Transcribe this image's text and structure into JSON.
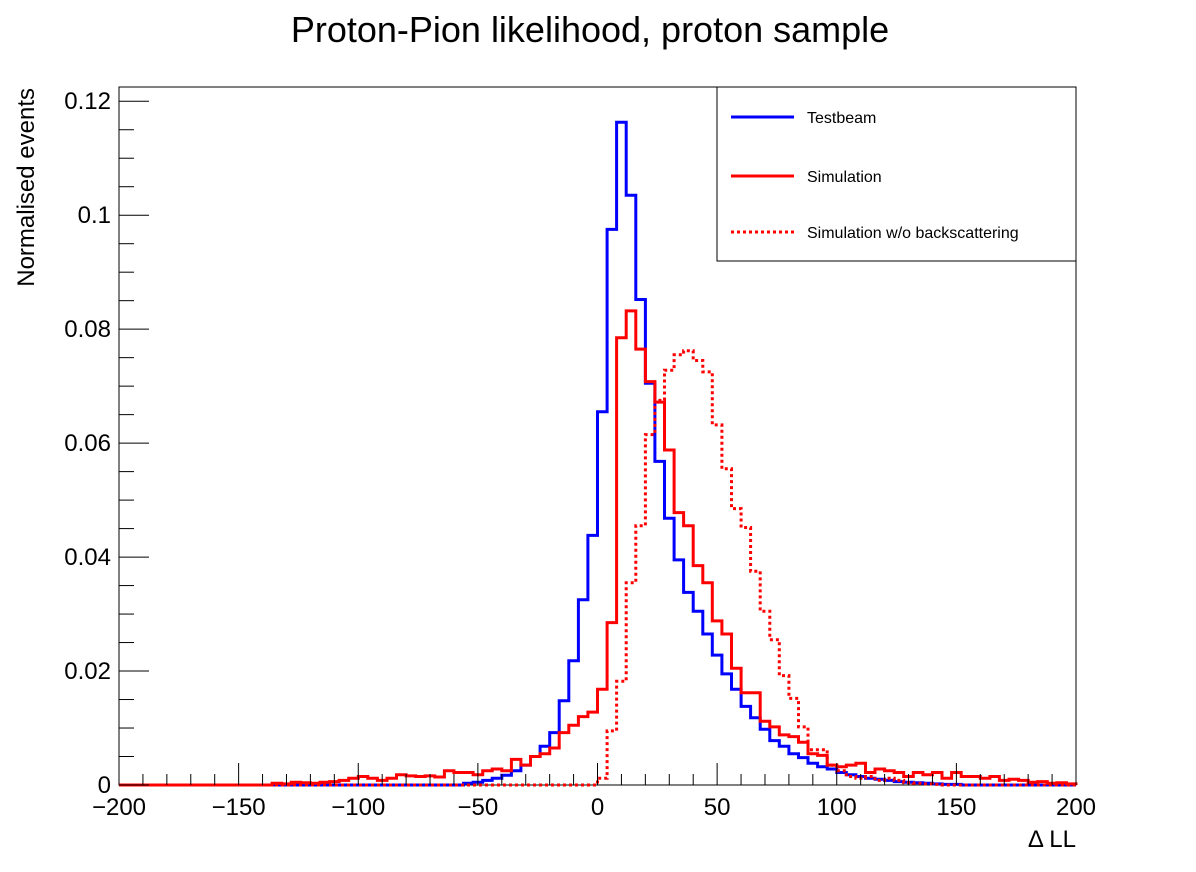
{
  "chart_data": {
    "type": "histogram",
    "title": "Proton-Pion likelihood, proton sample",
    "xlabel": "Δ LL",
    "ylabel": "Normalised events",
    "xlim": [
      -200,
      200
    ],
    "ylim": [
      0,
      0.1225
    ],
    "bin_width": 4,
    "x_ticks": [
      -200,
      -150,
      -100,
      -50,
      0,
      50,
      100,
      150,
      200
    ],
    "x_tick_labels": [
      "−200",
      "−150",
      "−100",
      "−50",
      "0",
      "50",
      "100",
      "150",
      "200"
    ],
    "y_ticks": [
      0,
      0.02,
      0.04,
      0.06,
      0.08,
      0.1,
      0.12
    ],
    "y_tick_labels": [
      "0",
      "0.02",
      "0.04",
      "0.06",
      "0.08",
      "0.1",
      "0.12"
    ],
    "grid": false,
    "legend_position": "top-right",
    "series": [
      {
        "name": "Testbeam",
        "color": "#0000ff",
        "style": "solid",
        "points": [
          [
            -200,
            0
          ],
          [
            -60,
            0
          ],
          [
            -56,
            0.0003
          ],
          [
            -52,
            0.0005
          ],
          [
            -48,
            0.0008
          ],
          [
            -44,
            0.0012
          ],
          [
            -40,
            0.0017
          ],
          [
            -36,
            0.0025
          ],
          [
            -32,
            0.0035
          ],
          [
            -28,
            0.005
          ],
          [
            -24,
            0.0068
          ],
          [
            -20,
            0.0092
          ],
          [
            -16,
            0.0148
          ],
          [
            -12,
            0.0218
          ],
          [
            -8,
            0.0325
          ],
          [
            -4,
            0.0438
          ],
          [
            0,
            0.0655
          ],
          [
            4,
            0.0975
          ],
          [
            8,
            0.1163
          ],
          [
            12,
            0.1035
          ],
          [
            16,
            0.0852
          ],
          [
            20,
            0.0705
          ],
          [
            24,
            0.0568
          ],
          [
            28,
            0.0468
          ],
          [
            32,
            0.0395
          ],
          [
            36,
            0.0338
          ],
          [
            40,
            0.0305
          ],
          [
            44,
            0.0265
          ],
          [
            48,
            0.0228
          ],
          [
            52,
            0.0195
          ],
          [
            56,
            0.0168
          ],
          [
            60,
            0.0138
          ],
          [
            64,
            0.0118
          ],
          [
            68,
            0.0098
          ],
          [
            72,
            0.0078
          ],
          [
            76,
            0.0068
          ],
          [
            80,
            0.0055
          ],
          [
            84,
            0.0048
          ],
          [
            88,
            0.0038
          ],
          [
            92,
            0.0032
          ],
          [
            96,
            0.0028
          ],
          [
            100,
            0.0022
          ],
          [
            104,
            0.0018
          ],
          [
            108,
            0.0015
          ],
          [
            112,
            0.0012
          ],
          [
            116,
            0.001
          ],
          [
            120,
            0.0008
          ],
          [
            124,
            0.0006
          ],
          [
            128,
            0.0005
          ],
          [
            132,
            0.0004
          ],
          [
            136,
            0.0003
          ],
          [
            140,
            0.0002
          ],
          [
            144,
            0.0001
          ],
          [
            148,
            0.0001
          ],
          [
            152,
            0
          ],
          [
            200,
            0
          ]
        ]
      },
      {
        "name": "Simulation",
        "color": "#ff0000",
        "style": "solid",
        "points": [
          [
            -200,
            0
          ],
          [
            -140,
            0
          ],
          [
            -136,
            0.0003
          ],
          [
            -132,
            0.0002
          ],
          [
            -128,
            0.0005
          ],
          [
            -124,
            0.0004
          ],
          [
            -120,
            0.0003
          ],
          [
            -116,
            0.0005
          ],
          [
            -112,
            0.0006
          ],
          [
            -108,
            0.0008
          ],
          [
            -104,
            0.0012
          ],
          [
            -100,
            0.0015
          ],
          [
            -96,
            0.0012
          ],
          [
            -92,
            0.0008
          ],
          [
            -88,
            0.0012
          ],
          [
            -84,
            0.0018
          ],
          [
            -80,
            0.0016
          ],
          [
            -76,
            0.0015
          ],
          [
            -72,
            0.0016
          ],
          [
            -68,
            0.0014
          ],
          [
            -64,
            0.0025
          ],
          [
            -60,
            0.0022
          ],
          [
            -56,
            0.0022
          ],
          [
            -52,
            0.0018
          ],
          [
            -48,
            0.0025
          ],
          [
            -44,
            0.0028
          ],
          [
            -40,
            0.0025
          ],
          [
            -36,
            0.0045
          ],
          [
            -32,
            0.0035
          ],
          [
            -28,
            0.005
          ],
          [
            -24,
            0.0055
          ],
          [
            -20,
            0.0065
          ],
          [
            -16,
            0.0092
          ],
          [
            -12,
            0.0105
          ],
          [
            -8,
            0.012
          ],
          [
            -4,
            0.0128
          ],
          [
            0,
            0.0168
          ],
          [
            4,
            0.0285
          ],
          [
            8,
            0.0785
          ],
          [
            12,
            0.0832
          ],
          [
            16,
            0.0765
          ],
          [
            20,
            0.0708
          ],
          [
            24,
            0.0672
          ],
          [
            28,
            0.0588
          ],
          [
            32,
            0.0478
          ],
          [
            36,
            0.0455
          ],
          [
            40,
            0.0385
          ],
          [
            44,
            0.0355
          ],
          [
            48,
            0.0288
          ],
          [
            52,
            0.0265
          ],
          [
            56,
            0.0205
          ],
          [
            60,
            0.0162
          ],
          [
            64,
            0.0162
          ],
          [
            68,
            0.0112
          ],
          [
            72,
            0.0102
          ],
          [
            76,
            0.0088
          ],
          [
            80,
            0.0085
          ],
          [
            84,
            0.0075
          ],
          [
            88,
            0.0055
          ],
          [
            92,
            0.0052
          ],
          [
            96,
            0.0035
          ],
          [
            100,
            0.0032
          ],
          [
            104,
            0.0035
          ],
          [
            108,
            0.0038
          ],
          [
            112,
            0.0022
          ],
          [
            116,
            0.0028
          ],
          [
            120,
            0.0025
          ],
          [
            124,
            0.0022
          ],
          [
            128,
            0.0015
          ],
          [
            132,
            0.0022
          ],
          [
            136,
            0.0018
          ],
          [
            140,
            0.0022
          ],
          [
            144,
            0.0012
          ],
          [
            148,
            0.0022
          ],
          [
            152,
            0.0015
          ],
          [
            156,
            0.0015
          ],
          [
            160,
            0.0012
          ],
          [
            164,
            0.0015
          ],
          [
            168,
            0.0008
          ],
          [
            172,
            0.001
          ],
          [
            176,
            0.0008
          ],
          [
            180,
            0.0005
          ],
          [
            184,
            0.0006
          ],
          [
            188,
            0.0003
          ],
          [
            192,
            0.0004
          ],
          [
            196,
            0.0002
          ],
          [
            200,
            0
          ]
        ]
      },
      {
        "name": "Simulation w/o backscattering",
        "color": "#ff0000",
        "style": "dotted",
        "points": [
          [
            -200,
            0
          ],
          [
            -4,
            0
          ],
          [
            0,
            0.0012
          ],
          [
            4,
            0.0095
          ],
          [
            8,
            0.0182
          ],
          [
            12,
            0.0355
          ],
          [
            16,
            0.0455
          ],
          [
            20,
            0.0615
          ],
          [
            24,
            0.0675
          ],
          [
            28,
            0.0728
          ],
          [
            32,
            0.0755
          ],
          [
            36,
            0.0762
          ],
          [
            40,
            0.0745
          ],
          [
            44,
            0.0725
          ],
          [
            48,
            0.0632
          ],
          [
            52,
            0.0555
          ],
          [
            56,
            0.0485
          ],
          [
            60,
            0.0452
          ],
          [
            64,
            0.0375
          ],
          [
            68,
            0.0305
          ],
          [
            72,
            0.0255
          ],
          [
            76,
            0.0192
          ],
          [
            80,
            0.0152
          ],
          [
            84,
            0.0102
          ],
          [
            88,
            0.0062
          ],
          [
            92,
            0.0062
          ],
          [
            96,
            0.0035
          ],
          [
            100,
            0.0025
          ],
          [
            104,
            0.0015
          ],
          [
            108,
            0.0012
          ],
          [
            112,
            0.0015
          ],
          [
            116,
            0.0008
          ],
          [
            120,
            0.0012
          ],
          [
            124,
            0.0008
          ],
          [
            128,
            0.0004
          ],
          [
            132,
            0.0003
          ],
          [
            136,
            0.0002
          ],
          [
            140,
            0.0001
          ],
          [
            144,
            0
          ],
          [
            200,
            0
          ]
        ]
      }
    ]
  }
}
